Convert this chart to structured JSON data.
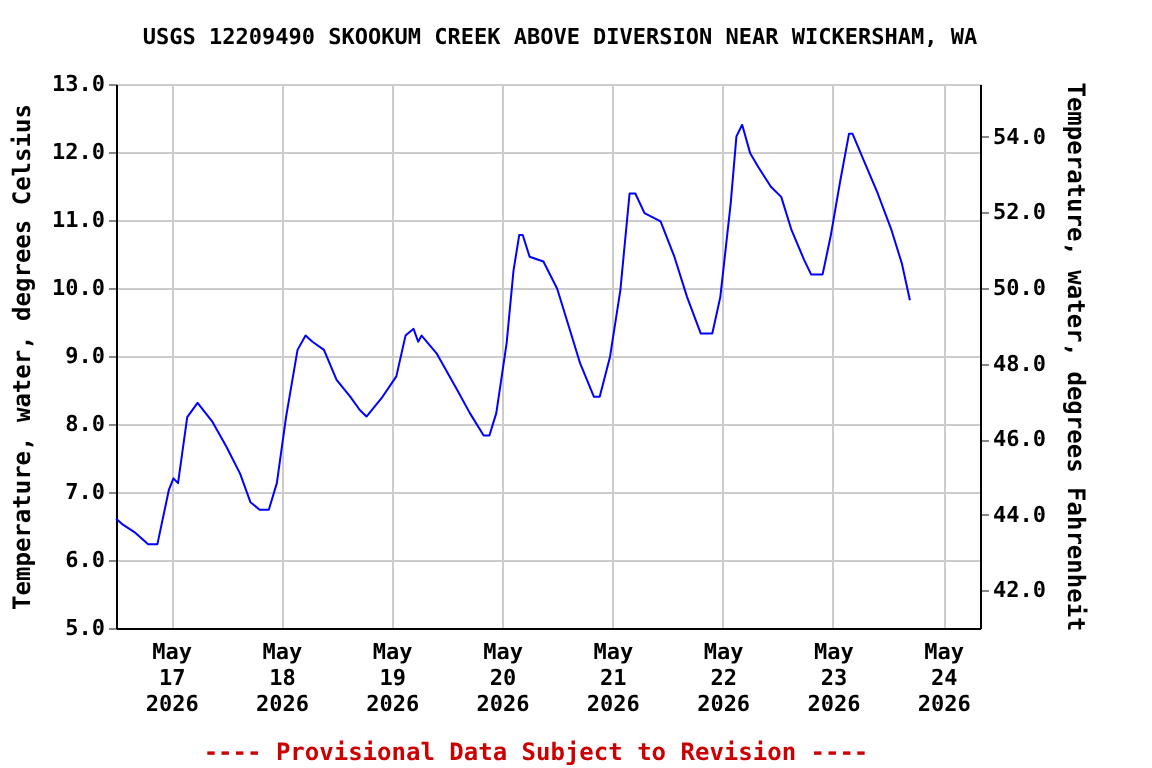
{
  "chart_data": {
    "type": "line",
    "title": "USGS 12209490 SKOOKUM CREEK ABOVE DIVERSION NEAR WICKERSHAM, WA",
    "ylabel": "Temperature, water, degrees Celsius",
    "y2label": "Temperature, water, degrees Fahrenheit",
    "annotations": [
      "---- Provisional Data Subject to Revision ----"
    ],
    "x": [
      "2026-05-16T12:00",
      "2026-05-16T13:30",
      "2026-05-16T16:00",
      "2026-05-16T19:00",
      "2026-05-16T21:00",
      "2026-05-16T23:30",
      "2026-05-17T00:30",
      "2026-05-17T01:30",
      "2026-05-17T03:30",
      "2026-05-17T05:45",
      "2026-05-17T09:00",
      "2026-05-17T12:00",
      "2026-05-17T15:00",
      "2026-05-17T17:15",
      "2026-05-17T19:15",
      "2026-05-17T21:15",
      "2026-05-17T23:00",
      "2026-05-18T01:00",
      "2026-05-18T03:30",
      "2026-05-18T05:15",
      "2026-05-18T06:45",
      "2026-05-18T09:15",
      "2026-05-18T12:00",
      "2026-05-18T15:00",
      "2026-05-18T17:00",
      "2026-05-18T18:30",
      "2026-05-18T22:00",
      "2026-05-19T01:00",
      "2026-05-19T03:00",
      "2026-05-19T04:45",
      "2026-05-19T05:45",
      "2026-05-19T06:30",
      "2026-05-19T09:45",
      "2026-05-19T14:15",
      "2026-05-19T17:00",
      "2026-05-19T20:00",
      "2026-05-19T21:15",
      "2026-05-19T22:45",
      "2026-05-20T01:00",
      "2026-05-20T02:30",
      "2026-05-20T03:45",
      "2026-05-20T04:30",
      "2026-05-20T06:00",
      "2026-05-20T09:00",
      "2026-05-20T12:00",
      "2026-05-20T15:00",
      "2026-05-20T17:00",
      "2026-05-20T20:00",
      "2026-05-20T21:15",
      "2026-05-20T23:30",
      "2026-05-21T01:45",
      "2026-05-21T03:45",
      "2026-05-21T05:00",
      "2026-05-21T07:00",
      "2026-05-21T10:30",
      "2026-05-21T13:30",
      "2026-05-21T16:15",
      "2026-05-21T19:15",
      "2026-05-21T21:45",
      "2026-05-21T23:30",
      "2026-05-22T01:45",
      "2026-05-22T03:00",
      "2026-05-22T04:15",
      "2026-05-22T06:00",
      "2026-05-22T07:45",
      "2026-05-22T10:30",
      "2026-05-22T12:45",
      "2026-05-22T15:00",
      "2026-05-22T17:45",
      "2026-05-22T19:15",
      "2026-05-22T21:45",
      "2026-05-22T23:30",
      "2026-05-23T01:30",
      "2026-05-23T03:30",
      "2026-05-23T04:15",
      "2026-05-23T07:00",
      "2026-05-23T09:45",
      "2026-05-23T12:45",
      "2026-05-23T15:00",
      "2026-05-23T16:45"
    ],
    "series": [
      {
        "color": "#0000ff",
        "values": [
          6.61,
          6.52,
          6.41,
          6.23,
          6.23,
          7.03,
          7.2,
          7.13,
          8.1,
          8.31,
          8.03,
          7.67,
          7.27,
          6.85,
          6.74,
          6.74,
          7.13,
          8.1,
          9.09,
          9.3,
          9.21,
          9.09,
          8.65,
          8.4,
          8.21,
          8.11,
          8.4,
          8.7,
          9.3,
          9.4,
          9.21,
          9.3,
          9.04,
          8.5,
          8.16,
          7.83,
          7.83,
          8.16,
          9.19,
          10.26,
          10.78,
          10.78,
          10.46,
          10.39,
          9.99,
          9.33,
          8.89,
          8.4,
          8.4,
          8.99,
          9.97,
          11.39,
          11.39,
          11.1,
          10.98,
          10.46,
          9.87,
          9.33,
          9.33,
          9.87,
          11.24,
          12.23,
          12.4,
          11.98,
          11.78,
          11.49,
          11.34,
          10.85,
          10.41,
          10.2,
          10.2,
          10.76,
          11.54,
          12.27,
          12.27,
          11.83,
          11.39,
          10.85,
          10.36,
          9.82
        ]
      }
    ],
    "xlim": [
      "2026-05-16T12:00",
      "2026-05-24T08:00"
    ],
    "xticks": [
      {
        "value": "2026-05-17",
        "label": "May\n17\n2026"
      },
      {
        "value": "2026-05-18",
        "label": "May\n18\n2026"
      },
      {
        "value": "2026-05-19",
        "label": "May\n19\n2026"
      },
      {
        "value": "2026-05-20",
        "label": "May\n20\n2026"
      },
      {
        "value": "2026-05-21",
        "label": "May\n21\n2026"
      },
      {
        "value": "2026-05-22",
        "label": "May\n22\n2026"
      },
      {
        "value": "2026-05-23",
        "label": "May\n23\n2026"
      },
      {
        "value": "2026-05-24",
        "label": "May\n24\n2026"
      }
    ],
    "ylim": [
      5.0,
      13.0
    ],
    "yticks": [
      {
        "value": 5,
        "label": "5.0"
      },
      {
        "value": 6,
        "label": "6.0"
      },
      {
        "value": 7,
        "label": "7.0"
      },
      {
        "value": 8,
        "label": "8.0"
      },
      {
        "value": 9,
        "label": "9.0"
      },
      {
        "value": 10,
        "label": "10.0"
      },
      {
        "value": 11,
        "label": "11.0"
      },
      {
        "value": 12,
        "label": "12.0"
      },
      {
        "value": 13,
        "label": "13.0"
      }
    ],
    "y2lim": [
      41.0,
      55.4
    ],
    "y2ticks": [
      {
        "value": 42,
        "label": "42.0"
      },
      {
        "value": 44,
        "label": "44.0"
      },
      {
        "value": 46,
        "label": "46.0"
      },
      {
        "value": 48,
        "label": "48.0"
      },
      {
        "value": 50,
        "label": "50.0"
      },
      {
        "value": 52,
        "label": "52.0"
      },
      {
        "value": 54,
        "label": "54.0"
      }
    ],
    "grid": true,
    "marker": "none",
    "line_style": "solid"
  }
}
